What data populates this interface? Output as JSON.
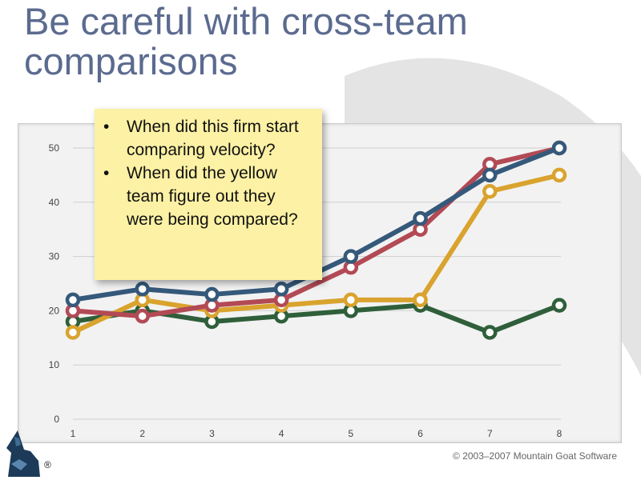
{
  "slide": {
    "title_line1": "Be careful with cross-team",
    "title_line2": "comparisons"
  },
  "note": {
    "bullets": [
      "When did this firm start comparing velocity?",
      "When did the yellow team figure out they were being compared?"
    ]
  },
  "footer": {
    "copyright": "© 2003–2007 Mountain Goat Software",
    "registered": "®"
  },
  "colors": {
    "background": "#ffffff",
    "title": "#5b6b8f",
    "note": "#fcf1a4",
    "plot_background": "#f2f2f2"
  },
  "chart_data": {
    "type": "line",
    "title": "",
    "xlabel": "",
    "ylabel": "",
    "x": [
      1,
      2,
      3,
      4,
      5,
      6,
      7,
      8
    ],
    "xlim": [
      1,
      8
    ],
    "ylim": [
      0,
      50
    ],
    "yticks": [
      0,
      10,
      20,
      30,
      40,
      50
    ],
    "grid": true,
    "legend": "none",
    "series": [
      {
        "color": "#2f5f3a",
        "values": [
          18,
          20,
          18,
          19,
          20,
          21,
          16,
          21
        ]
      },
      {
        "color": "#d9a32e",
        "values": [
          16,
          22,
          20,
          21,
          22,
          22,
          42,
          45
        ]
      },
      {
        "color": "#b24a55",
        "values": [
          20,
          19,
          21,
          22,
          28,
          35,
          47,
          50
        ]
      },
      {
        "color": "#35597a",
        "values": [
          22,
          24,
          23,
          24,
          30,
          37,
          45,
          50
        ]
      }
    ]
  }
}
